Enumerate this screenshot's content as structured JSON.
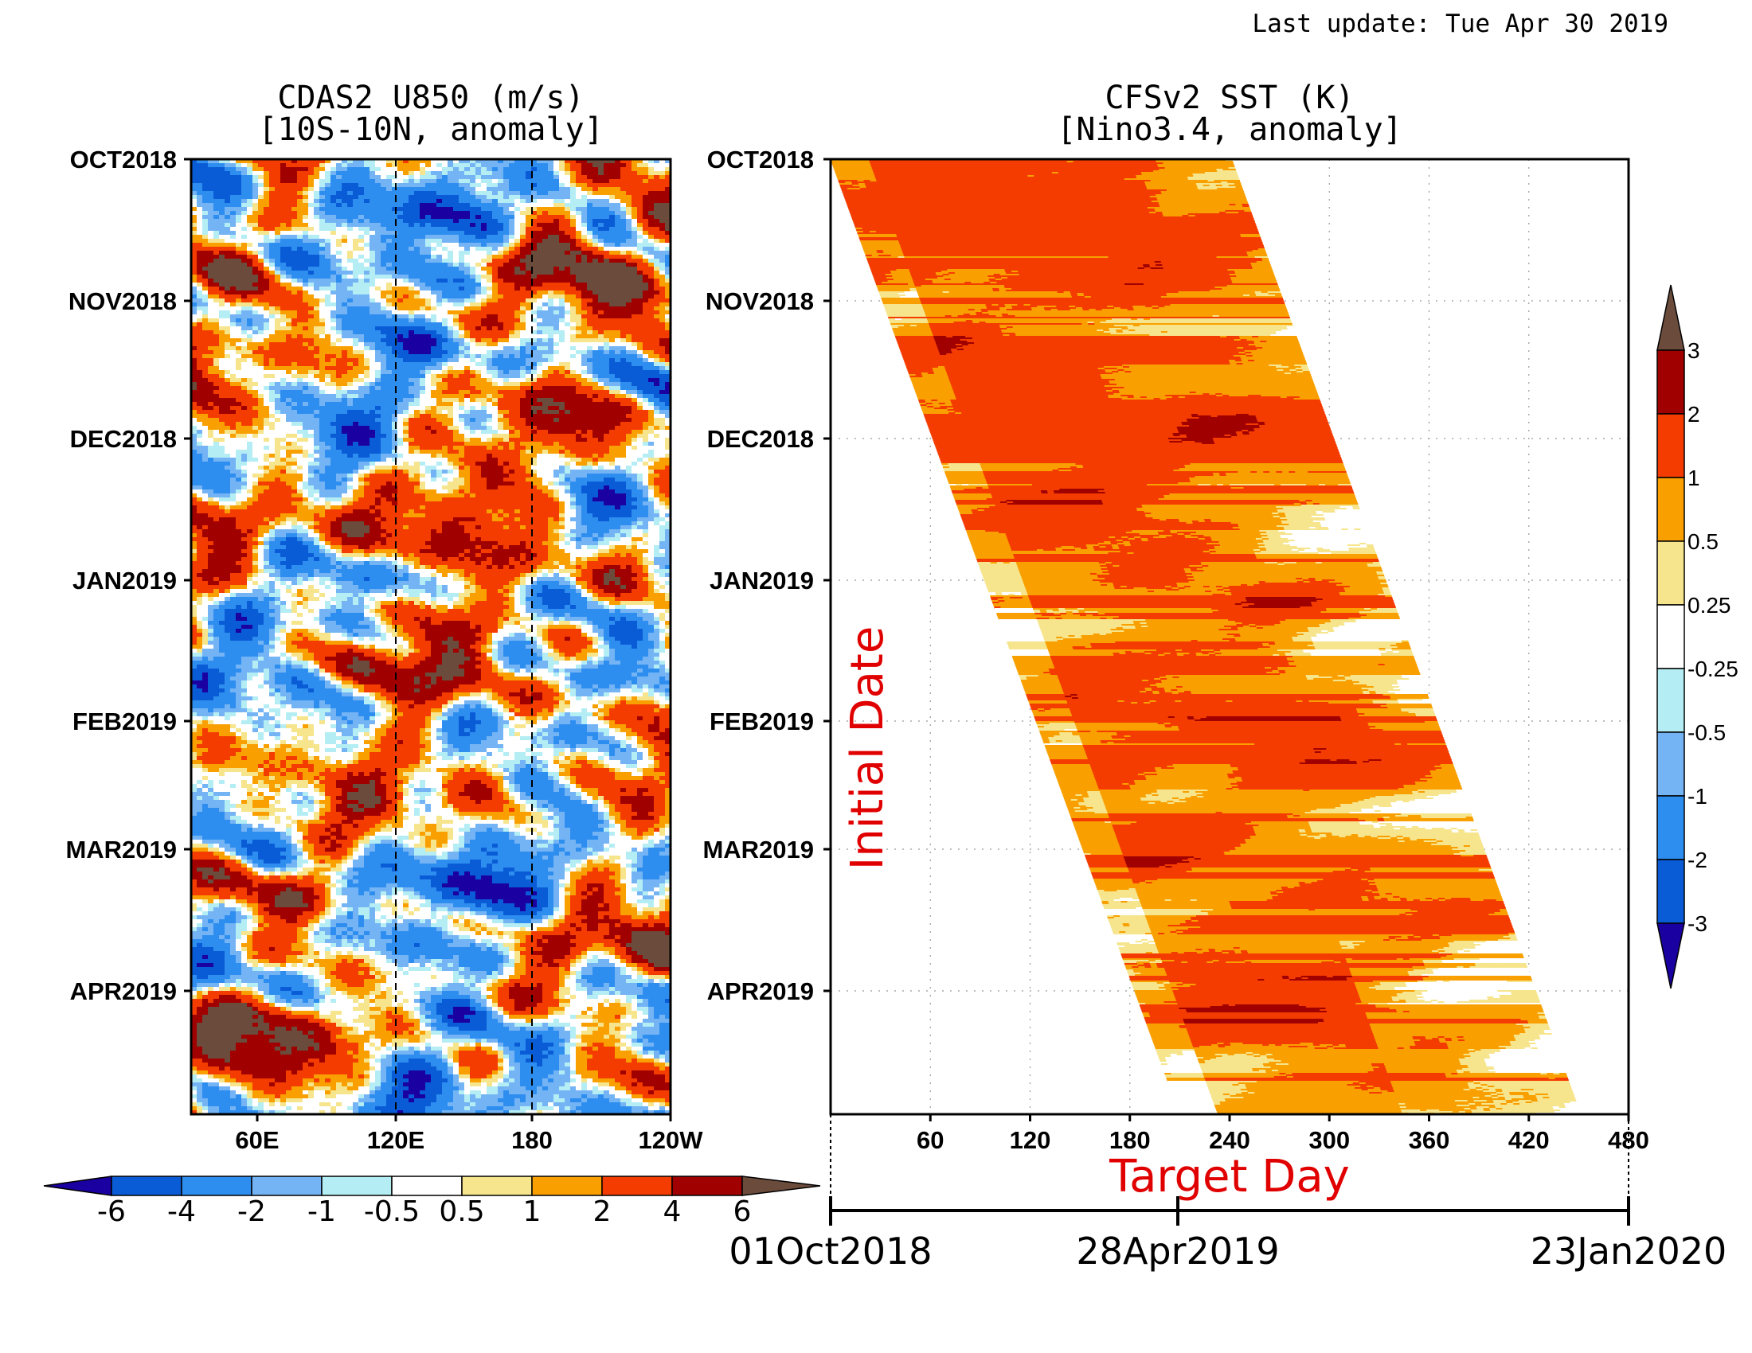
{
  "last_update": "Last update: Tue Apr 30 2019",
  "chart_data": [
    {
      "type": "heatmap",
      "title": "CDAS2 U850 (m/s)",
      "subtitle": "[10S-10N, anomaly]",
      "x_ticks": [
        "60E",
        "120E",
        "180",
        "120W"
      ],
      "y_ticks": [
        "OCT2018",
        "NOV2018",
        "DEC2018",
        "JAN2019",
        "FEB2019",
        "MAR2019",
        "APR2019"
      ],
      "reference_lines": [
        "120E",
        "180"
      ],
      "colorbar": {
        "orientation": "horizontal",
        "labels": [
          "-6",
          "-4",
          "-2",
          "-1",
          "-0.5",
          "0.5",
          "1",
          "2",
          "4",
          "6"
        ],
        "colors": [
          "#1a00a0",
          "#0a5cd6",
          "#2e8ef0",
          "#74b4f4",
          "#b4eef4",
          "#ffffff",
          "#f6e58c",
          "#f9a000",
          "#f43c00",
          "#a00000",
          "#6b4c3c"
        ]
      }
    },
    {
      "type": "heatmap",
      "title": "CFSv2 SST (K)",
      "subtitle": "[Nino3.4, anomaly]",
      "xlabel": "Target Day",
      "ylabel": "Initial Date",
      "x_ticks": [
        "60",
        "120",
        "180",
        "240",
        "300",
        "360",
        "420",
        "480"
      ],
      "x_range": [
        0,
        480
      ],
      "y_ticks": [
        "OCT2018",
        "NOV2018",
        "DEC2018",
        "JAN2019",
        "FEB2019",
        "MAR2019",
        "APR2019"
      ],
      "date_axis": [
        "01Oct2018",
        "28Apr2019",
        "23Jan2020"
      ],
      "colorbar": {
        "orientation": "vertical",
        "labels": [
          "3",
          "2",
          "1",
          "0.5",
          "0.25",
          "-0.25",
          "-0.5",
          "-1",
          "-2",
          "-3"
        ],
        "colors": [
          "#6b4c3c",
          "#a00000",
          "#f43c00",
          "#f9a000",
          "#f6e58c",
          "#ffffff",
          "#b4eef4",
          "#74b4f4",
          "#2e8ef0",
          "#0a5cd6",
          "#1a00a0"
        ]
      }
    }
  ]
}
